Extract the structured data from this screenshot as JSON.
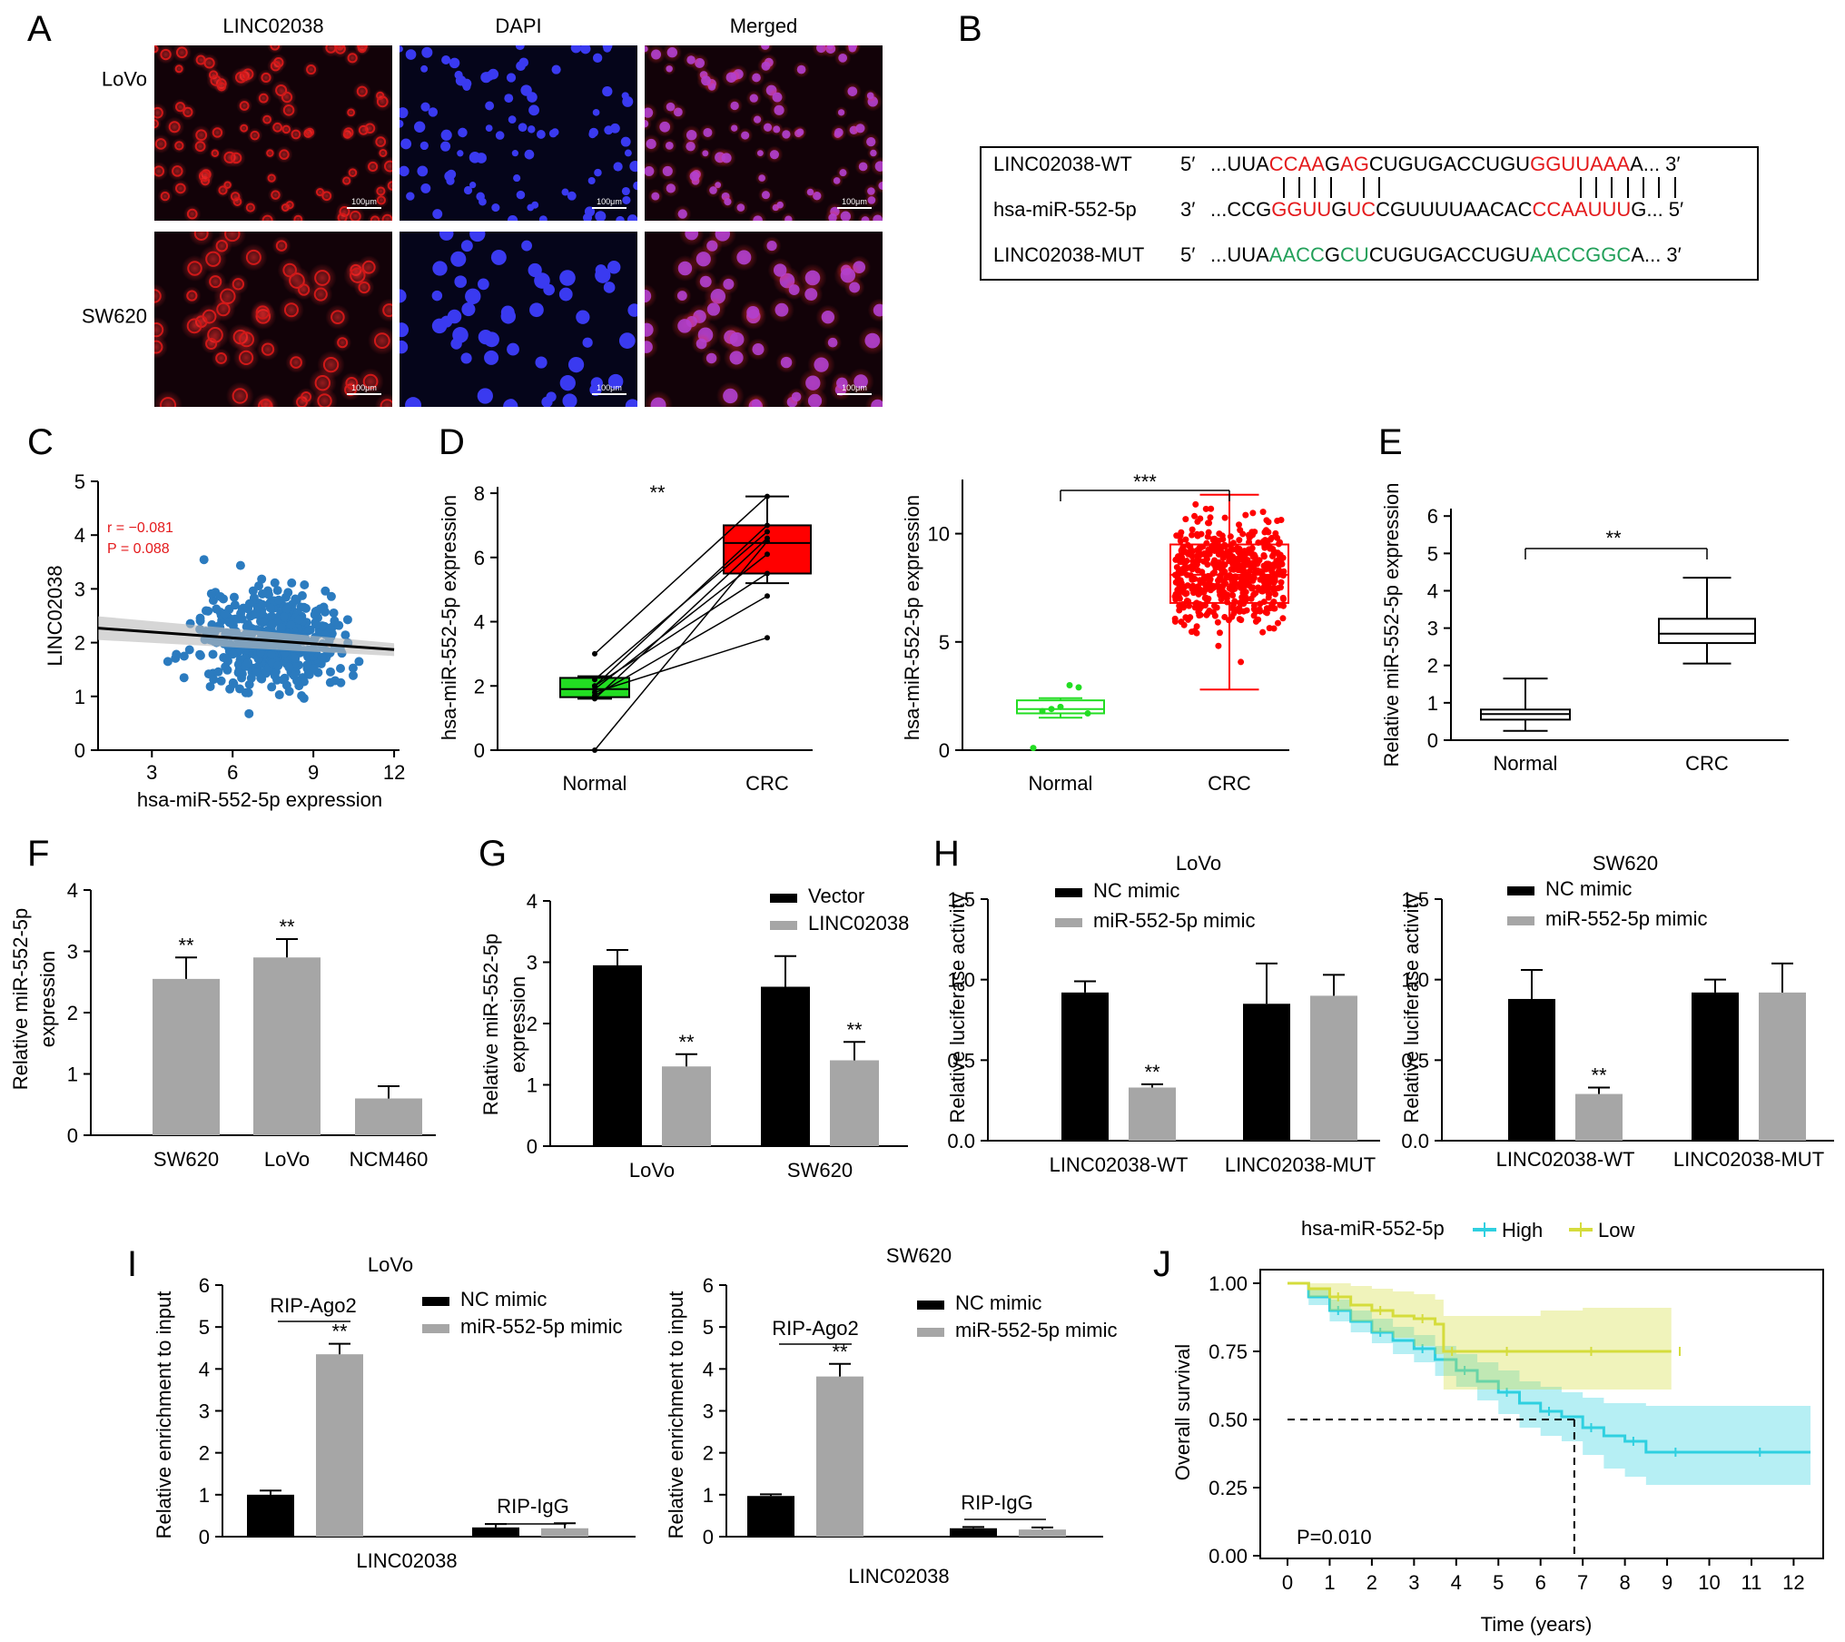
{
  "panels": {
    "A": {
      "letter": "A",
      "col_headers": [
        "LINC02038",
        "DAPI",
        "Merged"
      ],
      "row_labels": [
        "LoVo",
        "SW620"
      ],
      "scale_bar": "100μm"
    },
    "B": {
      "letter": "B",
      "rows": [
        {
          "name": "LINC02038-WT",
          "end5": "5′",
          "end3": "3′",
          "segments": [
            {
              "t": "...UUA",
              "c": "black"
            },
            {
              "t": "CCAA",
              "c": "red"
            },
            {
              "t": "G",
              "c": "black"
            },
            {
              "t": "AG",
              "c": "red"
            },
            {
              "t": "CUGUGACCUGU",
              "c": "black"
            },
            {
              "t": "GGUUAAA",
              "c": "red"
            },
            {
              "t": "A...",
              "c": "black"
            }
          ]
        },
        {
          "name": "hsa-miR-552-5p",
          "end5": "3′",
          "end3": "5′",
          "segments": [
            {
              "t": "...CCG",
              "c": "black"
            },
            {
              "t": "GGUU",
              "c": "red"
            },
            {
              "t": "G",
              "c": "black"
            },
            {
              "t": "UC",
              "c": "red"
            },
            {
              "t": "CGUUUUAACAC",
              "c": "black"
            },
            {
              "t": "CCAAUUU",
              "c": "red"
            },
            {
              "t": "G...",
              "c": "black"
            }
          ]
        },
        {
          "name": "LINC02038-MUT",
          "end5": "5′",
          "end3": "3′",
          "segments": [
            {
              "t": "...UUA",
              "c": "black"
            },
            {
              "t": "AACC",
              "c": "green"
            },
            {
              "t": "G",
              "c": "black"
            },
            {
              "t": "CU",
              "c": "green"
            },
            {
              "t": "CUGUGACCUGU",
              "c": "black"
            },
            {
              "t": "AACCGGC",
              "c": "green"
            },
            {
              "t": "A...",
              "c": "black"
            }
          ]
        }
      ],
      "pair_marks": "|||| ||           |||||||"
    },
    "C": {
      "letter": "C",
      "r_text": "r = −0.081",
      "p_text": "P = 0.088"
    },
    "D": {
      "letter": "D",
      "sig_left": "**",
      "sig_right": "***"
    },
    "E": {
      "letter": "E",
      "sig": "**"
    },
    "F": {
      "letter": "F"
    },
    "G": {
      "letter": "G"
    },
    "H": {
      "letter": "H"
    },
    "I": {
      "letter": "I"
    },
    "J": {
      "letter": "J",
      "p_text": "P=0.010",
      "legend_title": "hsa-miR-552-5p"
    }
  },
  "colors": {
    "red": "#e41a1c",
    "green": "#22a05a",
    "scatter": "#2b7bbf",
    "bar_dark": "#000000",
    "bar_light": "#a6a6a6",
    "cyan": "#2fd0e0",
    "yellow": "#d5dc3c",
    "normal_box": "#22dd22",
    "crc_box": "#ff0000"
  },
  "chart_data": [
    {
      "panel": "C",
      "type": "scatter",
      "xlabel": "hsa-miR-552-5p expression",
      "ylabel": "LINC02038",
      "xticks": [
        3,
        6,
        9,
        12
      ],
      "yticks": [
        0,
        1,
        2,
        3,
        4,
        5
      ],
      "xlim": [
        1,
        12.2
      ],
      "ylim": [
        0,
        5
      ],
      "fit_line": {
        "x": [
          1,
          12
        ],
        "y": [
          2.27,
          1.87
        ]
      },
      "point_count": 500,
      "x_range_approx": [
        1,
        12
      ],
      "y_range_approx": [
        0,
        4.6
      ]
    },
    {
      "panel": "D-left",
      "type": "box",
      "categories": [
        "Normal",
        "CRC"
      ],
      "ylabel": "hsa-miR-552-5p expression",
      "yticks": [
        0,
        2,
        4,
        6,
        8
      ],
      "ylim": [
        0,
        8.2
      ],
      "boxes": [
        {
          "name": "Normal",
          "q1": 1.65,
          "median": 1.9,
          "q3": 2.25,
          "min": 1.6,
          "max": 2.3
        },
        {
          "name": "CRC",
          "q1": 5.5,
          "median": 6.45,
          "q3": 7.0,
          "min": 5.2,
          "max": 7.9
        }
      ],
      "paired_lines": [
        [
          0,
          6.5
        ],
        [
          3.0,
          7.9
        ],
        [
          2.0,
          7.0
        ],
        [
          1.6,
          6.6
        ],
        [
          1.9,
          6.1
        ],
        [
          2.0,
          5.5
        ],
        [
          1.7,
          4.8
        ],
        [
          1.8,
          3.5
        ],
        [
          2.2,
          6.8
        ]
      ]
    },
    {
      "panel": "D-right",
      "type": "box",
      "categories": [
        "Normal",
        "CRC"
      ],
      "ylabel": "hsa-miR-552-5p expression",
      "yticks": [
        0,
        5,
        10
      ],
      "ylim": [
        0,
        12.5
      ],
      "boxes": [
        {
          "name": "Normal",
          "q1": 1.7,
          "median": 1.9,
          "q3": 2.3,
          "min": 1.5,
          "max": 2.4
        },
        {
          "name": "CRC",
          "q1": 6.8,
          "median": 8.1,
          "q3": 9.5,
          "min": 2.8,
          "max": 11.8
        }
      ],
      "normal_points": [
        0.1,
        1.8,
        1.9,
        2.0,
        3.0,
        2.9,
        1.7
      ]
    },
    {
      "panel": "E",
      "type": "box",
      "categories": [
        "Normal",
        "CRC"
      ],
      "ylabel": "Relative miR-552-5p expression",
      "yticks": [
        0,
        1,
        2,
        3,
        4,
        5,
        6
      ],
      "ylim": [
        0,
        6.2
      ],
      "boxes": [
        {
          "name": "Normal",
          "q1": 0.55,
          "median": 0.7,
          "q3": 0.82,
          "min": 0.25,
          "max": 1.65
        },
        {
          "name": "CRC",
          "q1": 2.6,
          "median": 2.85,
          "q3": 3.25,
          "min": 2.05,
          "max": 4.35
        }
      ]
    },
    {
      "panel": "F",
      "type": "bar",
      "categories": [
        "SW620",
        "LoVo",
        "NCM460"
      ],
      "ylabel": "Relative miR-552-5p expression",
      "yticks": [
        0,
        1,
        2,
        3,
        4
      ],
      "ylim": [
        0,
        4
      ],
      "values": [
        2.55,
        2.9,
        0.6
      ],
      "errors": [
        0.35,
        0.3,
        0.2
      ],
      "sig": [
        "**",
        "**",
        ""
      ]
    },
    {
      "panel": "G",
      "type": "bar",
      "categories": [
        "LoVo",
        "SW620"
      ],
      "ylabel": "Relative miR-552-5p expression",
      "yticks": [
        0,
        1,
        2,
        3,
        4
      ],
      "ylim": [
        0,
        4
      ],
      "series": [
        {
          "name": "Vector",
          "values": [
            2.95,
            2.6
          ],
          "errors": [
            0.25,
            0.5
          ],
          "sig": [
            "",
            ""
          ]
        },
        {
          "name": "LINC02038",
          "values": [
            1.3,
            1.4
          ],
          "errors": [
            0.2,
            0.3
          ],
          "sig": [
            "**",
            "**"
          ]
        }
      ]
    },
    {
      "panel": "H-left",
      "type": "bar",
      "title": "LoVo",
      "categories": [
        "LINC02038-WT",
        "LINC02038-MUT"
      ],
      "ylabel": "Relative luciferase activity",
      "yticks": [
        "0.0",
        "0.5",
        "1.0",
        "1.5"
      ],
      "ylim": [
        0,
        1.5
      ],
      "series": [
        {
          "name": "NC mimic",
          "values": [
            0.92,
            0.85
          ],
          "errors": [
            0.07,
            0.25
          ],
          "sig": [
            "",
            ""
          ]
        },
        {
          "name": "miR-552-5p mimic",
          "values": [
            0.33,
            0.9
          ],
          "errors": [
            0.02,
            0.13
          ],
          "sig": [
            "**",
            ""
          ]
        }
      ]
    },
    {
      "panel": "H-right",
      "type": "bar",
      "title": "SW620",
      "categories": [
        "LINC02038-WT",
        "LINC02038-MUT"
      ],
      "ylabel": "Relative luciferase activity",
      "yticks": [
        "0.0",
        "0.5",
        "1.0",
        "1.5"
      ],
      "ylim": [
        0,
        1.5
      ],
      "series": [
        {
          "name": "NC mimic",
          "values": [
            0.88,
            0.92
          ],
          "errors": [
            0.18,
            0.08
          ],
          "sig": [
            "",
            ""
          ]
        },
        {
          "name": "miR-552-5p mimic",
          "values": [
            0.29,
            0.92
          ],
          "errors": [
            0.04,
            0.18
          ],
          "sig": [
            "**",
            ""
          ]
        }
      ]
    },
    {
      "panel": "I-left",
      "type": "bar",
      "title": "LoVo",
      "categories": [
        "RIP-Ago2",
        "RIP-IgG"
      ],
      "xlabel": "LINC02038",
      "ylabel": "Relative enrichment to input",
      "yticks": [
        0,
        1,
        2,
        3,
        4,
        5,
        6
      ],
      "ylim": [
        0,
        6
      ],
      "series": [
        {
          "name": "NC mimic",
          "values": [
            1.0,
            0.22
          ],
          "errors": [
            0.1,
            0.08
          ],
          "sig": [
            "",
            ""
          ]
        },
        {
          "name": "miR-552-5p mimic",
          "values": [
            4.35,
            0.2
          ],
          "errors": [
            0.25,
            0.12
          ],
          "sig": [
            "**",
            ""
          ]
        }
      ]
    },
    {
      "panel": "I-right",
      "type": "bar",
      "title": "SW620",
      "categories": [
        "RIP-Ago2",
        "RIP-IgG"
      ],
      "xlabel": "LINC02038",
      "ylabel": "Relative enrichment to input",
      "yticks": [
        0,
        1,
        2,
        3,
        4,
        5,
        6
      ],
      "ylim": [
        0,
        6
      ],
      "series": [
        {
          "name": "NC mimic",
          "values": [
            0.97,
            0.2
          ],
          "errors": [
            0.04,
            0.03
          ],
          "sig": [
            "",
            ""
          ]
        },
        {
          "name": "miR-552-5p mimic",
          "values": [
            3.82,
            0.17
          ],
          "errors": [
            0.3,
            0.05
          ],
          "sig": [
            "**",
            ""
          ]
        }
      ]
    },
    {
      "panel": "J",
      "type": "line",
      "xlabel": "Time (years)",
      "ylabel": "Overall survival",
      "xticks": [
        0,
        1,
        2,
        3,
        4,
        5,
        6,
        7,
        8,
        9,
        10,
        11,
        12
      ],
      "yticks": [
        "0.00",
        "0.25",
        "0.50",
        "0.75",
        "1.00"
      ],
      "xlim": [
        0,
        12.4
      ],
      "ylim": [
        0,
        1.0
      ],
      "median_survival_x": 6.8,
      "series": [
        {
          "name": "High",
          "x": [
            0,
            0.5,
            1,
            1.5,
            2,
            2.5,
            3,
            3.5,
            4,
            4.5,
            5,
            5.5,
            6,
            6.5,
            7,
            7.5,
            8,
            8.5,
            9,
            10,
            11,
            12.4
          ],
          "y": [
            1.0,
            0.95,
            0.9,
            0.86,
            0.82,
            0.79,
            0.76,
            0.72,
            0.68,
            0.64,
            0.6,
            0.56,
            0.53,
            0.51,
            0.47,
            0.44,
            0.42,
            0.38,
            0.38,
            0.38,
            0.38,
            0.38
          ],
          "ci_upper": [
            1.0,
            0.98,
            0.94,
            0.9,
            0.87,
            0.84,
            0.81,
            0.77,
            0.74,
            0.71,
            0.68,
            0.64,
            0.62,
            0.6,
            0.58,
            0.56,
            0.56,
            0.55,
            0.55,
            0.55,
            0.55,
            0.55
          ],
          "ci_lower": [
            1.0,
            0.92,
            0.86,
            0.82,
            0.78,
            0.74,
            0.71,
            0.66,
            0.62,
            0.57,
            0.52,
            0.47,
            0.44,
            0.42,
            0.37,
            0.32,
            0.29,
            0.26,
            0.26,
            0.26,
            0.26,
            0.26
          ]
        },
        {
          "name": "Low",
          "x": [
            0,
            0.5,
            1,
            1.5,
            2,
            2.5,
            3,
            3.5,
            3.7,
            4,
            5,
            6,
            7,
            8,
            9.1
          ],
          "y": [
            1.0,
            0.98,
            0.95,
            0.92,
            0.9,
            0.88,
            0.87,
            0.85,
            0.75,
            0.75,
            0.75,
            0.75,
            0.75,
            0.75,
            0.75
          ],
          "ci_upper": [
            1.0,
            1.0,
            1.0,
            0.99,
            0.98,
            0.97,
            0.96,
            0.94,
            0.88,
            0.88,
            0.88,
            0.9,
            0.91,
            0.91,
            0.91
          ],
          "ci_lower": [
            1.0,
            0.95,
            0.9,
            0.86,
            0.82,
            0.8,
            0.77,
            0.74,
            0.61,
            0.61,
            0.61,
            0.61,
            0.61,
            0.61,
            0.61
          ]
        }
      ]
    }
  ]
}
